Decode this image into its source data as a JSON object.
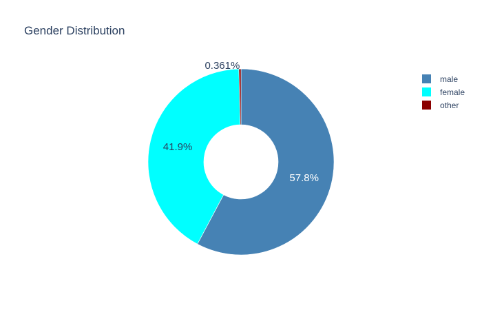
{
  "chart_data": {
    "type": "pie",
    "title": "Gender Distribution",
    "hole": true,
    "categories": [
      "male",
      "female",
      "other"
    ],
    "values": [
      57.8,
      41.9,
      0.361
    ],
    "labels": [
      "57.8%",
      "41.9%",
      "0.361%"
    ],
    "colors": [
      "#4682b4",
      "#00ffff",
      "#8b0000"
    ],
    "label_colors": [
      "#ffffff",
      "#2a3f5f",
      "#2a3f5f"
    ],
    "legend": {
      "placement": "top-right",
      "items": [
        {
          "label": "male",
          "color": "#4682b4"
        },
        {
          "label": "female",
          "color": "#00ffff"
        },
        {
          "label": "other",
          "color": "#8b0000"
        }
      ]
    }
  }
}
